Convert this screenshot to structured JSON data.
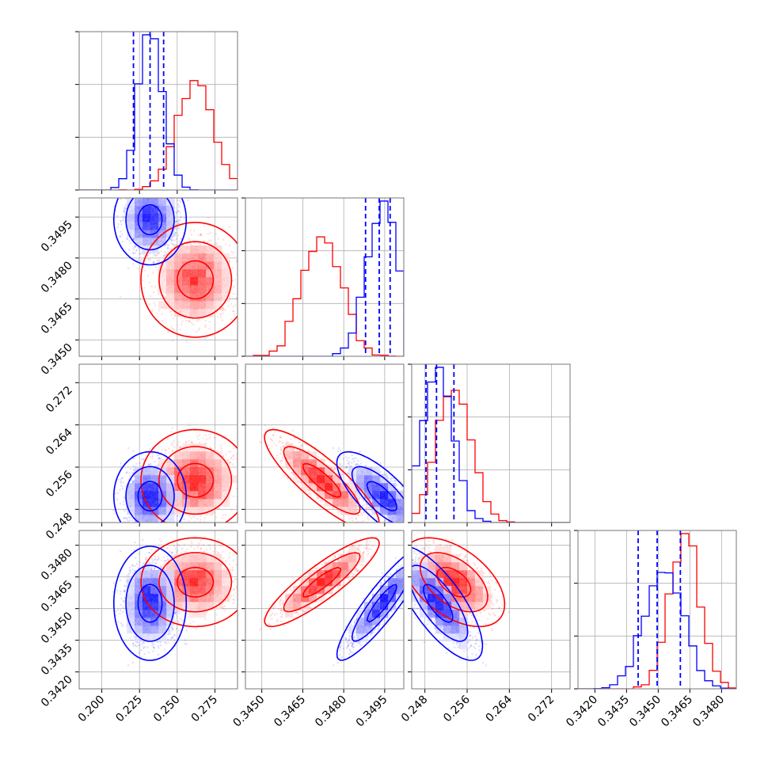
{
  "chart_data": {
    "type": "corner",
    "parameters": [
      {
        "range": [
          0.185,
          0.29
        ],
        "ticks": [
          0.2,
          0.225,
          0.25,
          0.275
        ],
        "tick_labels": [
          "0.200",
          "0.225",
          "0.250",
          "0.275"
        ]
      },
      {
        "range": [
          0.3444,
          0.3502
        ],
        "ticks": [
          0.345,
          0.3465,
          0.348,
          0.3495
        ],
        "tick_labels": [
          "0.3450",
          "0.3465",
          "0.3480",
          "0.3495"
        ]
      },
      {
        "range": [
          0.2455,
          0.2755
        ],
        "ticks": [
          0.248,
          0.256,
          0.264,
          0.272
        ],
        "tick_labels": [
          "0.248",
          "0.256",
          "0.264",
          "0.272"
        ]
      },
      {
        "range": [
          0.3412,
          0.3487
        ],
        "ticks": [
          0.342,
          0.3435,
          0.345,
          0.3465,
          0.348
        ],
        "tick_labels": [
          "0.3420",
          "0.3435",
          "0.3450",
          "0.3465",
          "0.3480"
        ]
      }
    ],
    "series": [
      {
        "color": "#ff0000",
        "mean": [
          0.262,
          0.3472,
          0.2535,
          0.34625
        ],
        "sd": [
          0.012,
          0.0007,
          0.0032,
          0.0007
        ],
        "corr": [
          [
            1.0,
            0.0,
            0.0,
            0.0
          ],
          [
            0.0,
            1.0,
            -0.85,
            0.88
          ],
          [
            0.0,
            -0.85,
            1.0,
            -0.5
          ],
          [
            0.0,
            0.88,
            -0.5,
            1.0
          ]
        ]
      },
      {
        "color": "#0000ff",
        "mean": [
          0.232,
          0.3494,
          0.2505,
          0.34525
        ],
        "sd": [
          0.008,
          0.00055,
          0.0028,
          0.0009
        ],
        "corr": [
          [
            1.0,
            0.0,
            0.0,
            0.0
          ],
          [
            0.0,
            1.0,
            -0.75,
            0.9
          ],
          [
            0.0,
            -0.75,
            1.0,
            -0.75
          ],
          [
            0.0,
            0.9,
            -0.75,
            1.0
          ]
        ]
      }
    ],
    "quantile_lines": {
      "color": "#0000ff",
      "style": "dashed",
      "values": [
        [
          0.221,
          0.232,
          0.241
        ],
        [
          0.3488,
          0.3493,
          0.3497
        ],
        [
          0.2482,
          0.2502,
          0.2535
        ],
        [
          0.34405,
          0.34495,
          0.34605
        ]
      ]
    },
    "histogram_bins": 20,
    "contour_levels": [
      0.393,
      0.865,
      0.989
    ],
    "grid": true
  }
}
